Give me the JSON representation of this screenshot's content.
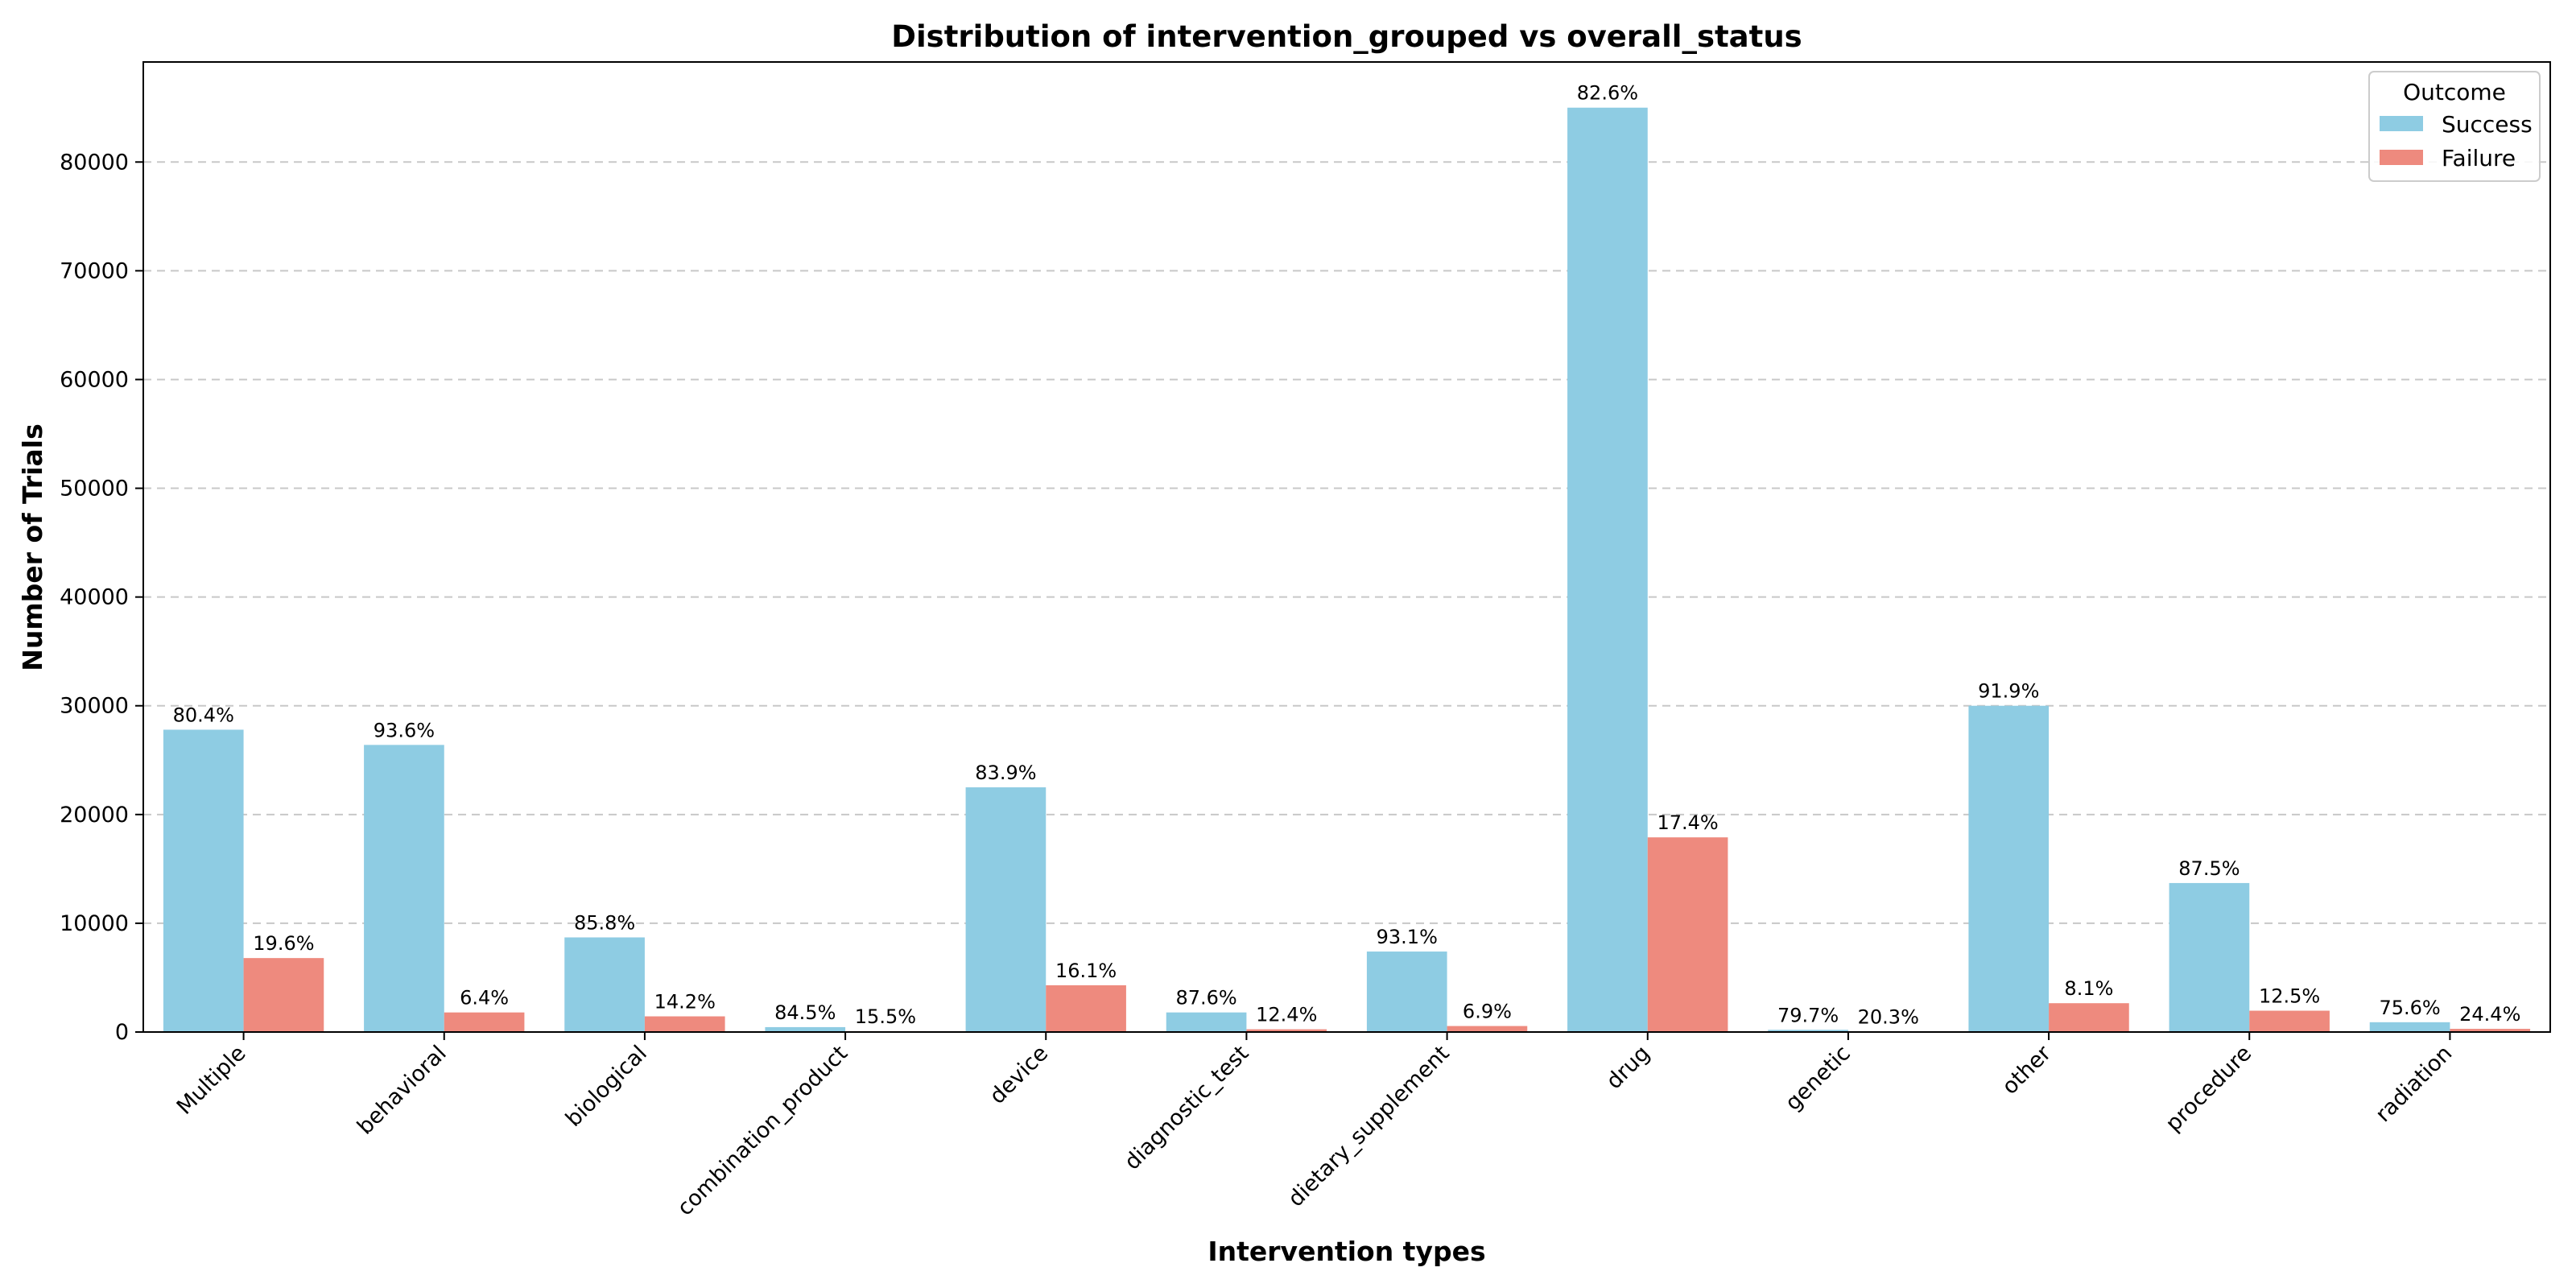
{
  "chart_data": {
    "type": "bar",
    "title": "Distribution of intervention_grouped vs overall_status",
    "xlabel": "Intervention types",
    "ylabel": "Number of Trials",
    "categories": [
      "Multiple",
      "behavioral",
      "biological",
      "combination_product",
      "device",
      "diagnostic_test",
      "dietary_supplement",
      "drug",
      "genetic",
      "other",
      "procedure",
      "radiation"
    ],
    "series": [
      {
        "name": "Success",
        "color": "#8ECCE3",
        "values": [
          27800,
          26400,
          8700,
          450,
          22500,
          1800,
          7400,
          85000,
          200,
          30000,
          13700,
          900
        ],
        "labels": [
          "80.4%",
          "93.6%",
          "85.8%",
          "84.5%",
          "83.9%",
          "87.6%",
          "93.1%",
          "82.6%",
          "79.7%",
          "91.9%",
          "87.5%",
          "75.6%"
        ]
      },
      {
        "name": "Failure",
        "color": "#EE8A7E",
        "values": [
          6800,
          1800,
          1440,
          80,
          4300,
          250,
          550,
          17900,
          50,
          2650,
          1960,
          290
        ],
        "labels": [
          "19.6%",
          "6.4%",
          "14.2%",
          "15.5%",
          "16.1%",
          "12.4%",
          "6.9%",
          "17.4%",
          "20.3%",
          "8.1%",
          "12.5%",
          "24.4%"
        ]
      }
    ],
    "yticks": [
      0,
      10000,
      20000,
      30000,
      40000,
      50000,
      60000,
      70000,
      80000
    ],
    "ylim": [
      0,
      89200
    ],
    "grid": "y-dashed",
    "legend": {
      "title": "Outcome",
      "placement": "top-right"
    }
  }
}
